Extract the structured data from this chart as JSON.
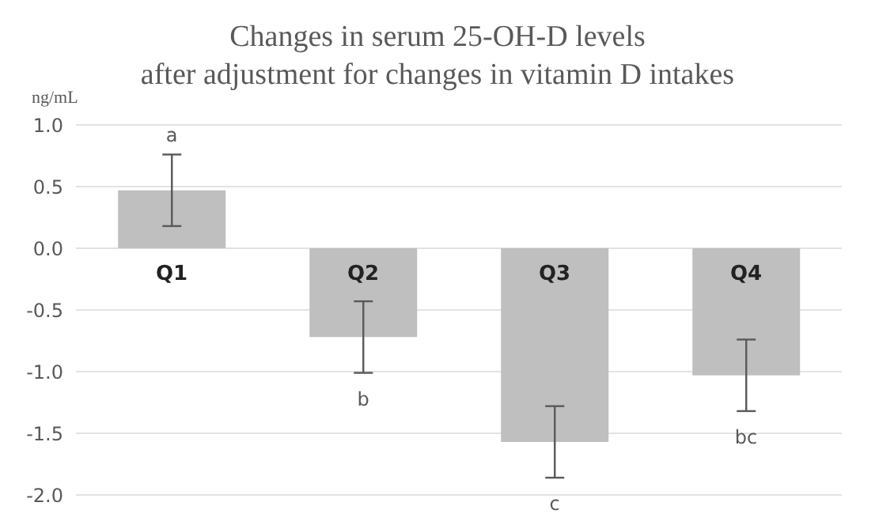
{
  "chart_data": {
    "type": "bar",
    "title": "Changes in serum 25-OH-D levels",
    "subtitle": "after adjustment for changes in vitamin D intakes",
    "ylabel": "ng/mL",
    "categories": [
      "Q1",
      "Q2",
      "Q3",
      "Q4"
    ],
    "values": [
      0.47,
      -0.72,
      -1.57,
      -1.03
    ],
    "errors": [
      0.29,
      0.29,
      0.29,
      0.29
    ],
    "color": "#bfbfbf",
    "ylim": [
      -2.0,
      1.0
    ],
    "yticks": [
      {
        "value": -2,
        "label": "-2.0"
      },
      {
        "value": -1.5,
        "label": "-1.5"
      },
      {
        "value": -1,
        "label": "-1.0"
      },
      {
        "value": -0.5,
        "label": "-0.5"
      },
      {
        "value": 0,
        "label": "0.0"
      },
      {
        "value": 0.5,
        "label": "0.5"
      },
      {
        "value": 1,
        "label": "1.0"
      }
    ],
    "grid": "y",
    "annotations": [
      "a",
      "b",
      "c",
      "bc"
    ]
  }
}
